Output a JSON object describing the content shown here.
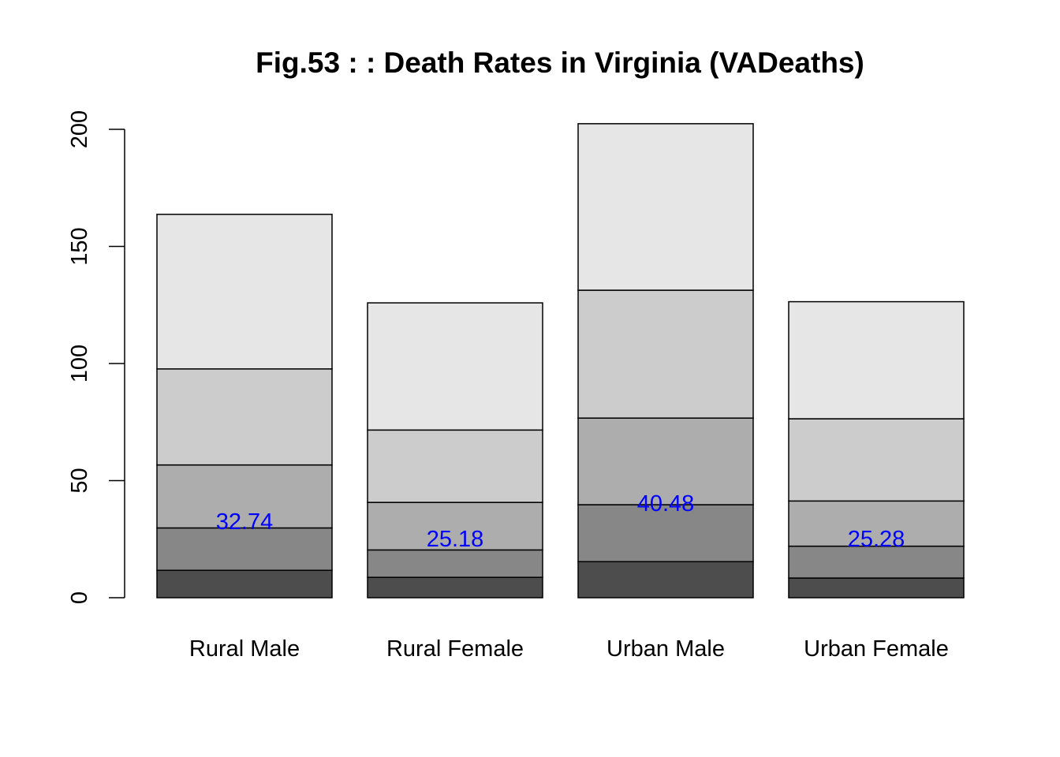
{
  "chart_data": {
    "type": "bar",
    "stacked": true,
    "title": "Fig.53 : : Death Rates in Virginia (VADeaths)",
    "xlabel": "",
    "ylabel": "",
    "ylim": [
      0,
      200
    ],
    "yticks": [
      "0",
      "50",
      "100",
      "150",
      "200"
    ],
    "categories": [
      "Rural Male",
      "Rural Female",
      "Urban Male",
      "Urban Female"
    ],
    "series": [
      {
        "values": [
          11.7,
          8.7,
          15.4,
          8.4
        ],
        "color": "#4d4d4d"
      },
      {
        "values": [
          18.1,
          11.7,
          24.3,
          13.6
        ],
        "color": "#878787"
      },
      {
        "values": [
          26.9,
          20.3,
          37.0,
          19.3
        ],
        "color": "#adadad"
      },
      {
        "values": [
          41.0,
          30.9,
          54.6,
          35.1
        ],
        "color": "#cccccc"
      },
      {
        "values": [
          66.0,
          54.3,
          71.1,
          50.0
        ],
        "color": "#e6e6e6"
      }
    ],
    "data_labels": [
      "32.74",
      "25.18",
      "40.48",
      "25.28"
    ],
    "data_label_color": "#0000ff",
    "grid": false,
    "legend": "none"
  }
}
